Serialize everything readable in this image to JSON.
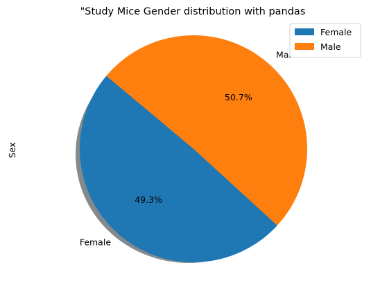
{
  "chart_data": {
    "type": "pie",
    "title": "\"Study Mice Gender distribution with pandas",
    "ylabel": "Sex",
    "categories": [
      "Female",
      "Male"
    ],
    "values": [
      49.3,
      50.7
    ],
    "percent_labels": [
      "49.3%",
      "50.7%"
    ],
    "colors": [
      "#1f77b4",
      "#ff7f0e"
    ],
    "start_angle_deg": 140,
    "shadow": true,
    "legend": {
      "placement": "top-right",
      "entries": [
        "Female",
        "Male"
      ]
    }
  }
}
